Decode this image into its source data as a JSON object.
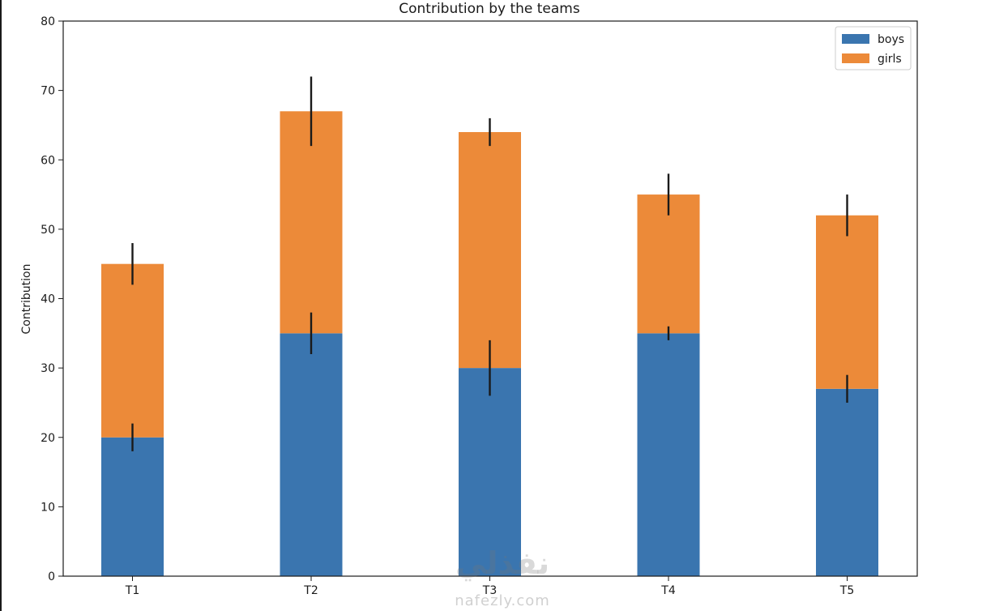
{
  "chart_data": {
    "type": "bar",
    "stacked": true,
    "title": "Contribution by the teams",
    "xlabel": "",
    "ylabel": "Contribution",
    "categories": [
      "T1",
      "T2",
      "T3",
      "T4",
      "T5"
    ],
    "ylim": [
      0,
      80
    ],
    "yticks": [
      0,
      10,
      20,
      30,
      40,
      50,
      60,
      70,
      80
    ],
    "grid": false,
    "legend_position": "top-right",
    "series": [
      {
        "name": "boys",
        "color": "#3a75af",
        "values": [
          20,
          35,
          30,
          35,
          27
        ],
        "errors": [
          2,
          3,
          4,
          1,
          2
        ]
      },
      {
        "name": "girls",
        "color": "#ec8a39",
        "values": [
          25,
          32,
          34,
          20,
          25
        ],
        "errors": [
          3,
          5,
          2,
          3,
          3
        ]
      }
    ]
  },
  "watermark": {
    "arabic": "نفذلي",
    "latin": "nafezly.com"
  }
}
